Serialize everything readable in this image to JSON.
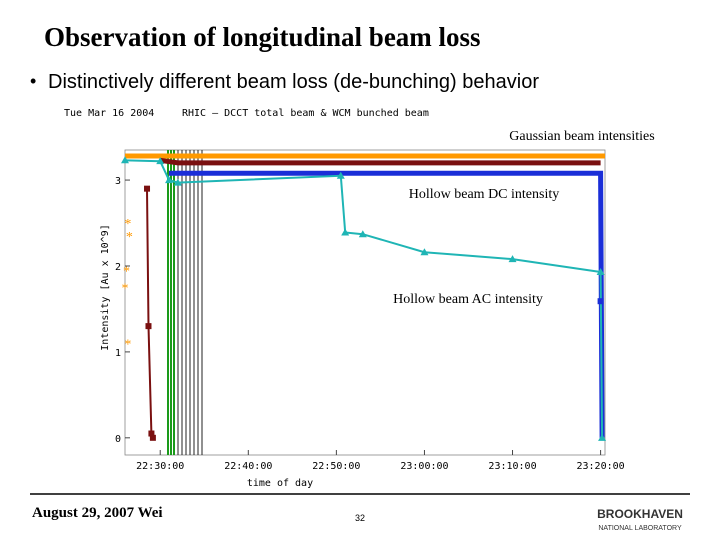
{
  "title": "Observation of longitudinal beam loss",
  "bullet": "Distinctively different beam loss (de-bunching) behavior",
  "footer": {
    "date": "August 29, 2007 Wei",
    "page": "32",
    "logo": "BROOKHAVEN",
    "logo_sub": "NATIONAL LABORATORY"
  },
  "chart_data": {
    "type": "line",
    "title": "Tue Mar 16 2004",
    "subtitle": "RHIC  –  DCCT total beam & WCM bunched beam",
    "x_label": "time of day",
    "y_label": "Intensity [Au x 10^9]",
    "annotations": [
      "Gaussian beam intensities",
      "Hollow beam DC intensity",
      "Hollow beam AC intensity"
    ],
    "xlim": [
      "22:26:00",
      "23:20:30"
    ],
    "xticks": [
      "22:30:00",
      "22:40:00",
      "22:50:00",
      "23:00:00",
      "23:10:00",
      "23:20:00"
    ],
    "ylim": [
      -0.2,
      3.35
    ],
    "yticks": [
      0,
      1,
      2,
      3
    ],
    "series": [
      {
        "color": "#ff9900",
        "marker": "none",
        "x": [
          "22:26:00",
          "23:20:30"
        ],
        "values": [
          3.28,
          3.28
        ]
      },
      {
        "color": "#7a1010",
        "marker": "none",
        "x": [
          "22:30:00",
          "22:32:00",
          "23:20:00"
        ],
        "values": [
          3.23,
          3.2,
          3.2
        ]
      },
      {
        "color": "#1a2ed8",
        "marker": "none",
        "x": [
          "22:31:00",
          "23:20:00",
          "23:20:10"
        ],
        "values": [
          3.08,
          3.08,
          0
        ]
      },
      {
        "color": "#1fb5b5",
        "marker": "triangle",
        "x": [
          "22:26:00",
          "22:30:00",
          "22:31:00",
          "22:32:00",
          "22:50:30",
          "22:51:00",
          "22:53:00",
          "23:00:00",
          "23:10:00",
          "23:20:00",
          "23:20:10"
        ],
        "values": [
          3.23,
          3.22,
          3.0,
          2.97,
          3.05,
          2.39,
          2.37,
          2.16,
          2.08,
          1.93,
          0
        ]
      },
      {
        "color": "#7a1010",
        "marker": "square",
        "x": [
          "22:28:30",
          "22:28:40",
          "22:29:00",
          "22:29:10"
        ],
        "values": [
          2.9,
          1.3,
          0.05,
          0
        ]
      },
      {
        "color": "#1a2ed8",
        "marker": "square",
        "x": [
          "23:20:00"
        ],
        "values": [
          1.59
        ]
      },
      {
        "color": "#ff9900",
        "marker": "star",
        "x": [
          "22:26:20",
          "22:26:30",
          "22:26:10",
          "22:26:00",
          "22:26:20"
        ],
        "values": [
          2.5,
          2.35,
          1.95,
          1.75,
          1.1
        ]
      }
    ]
  }
}
